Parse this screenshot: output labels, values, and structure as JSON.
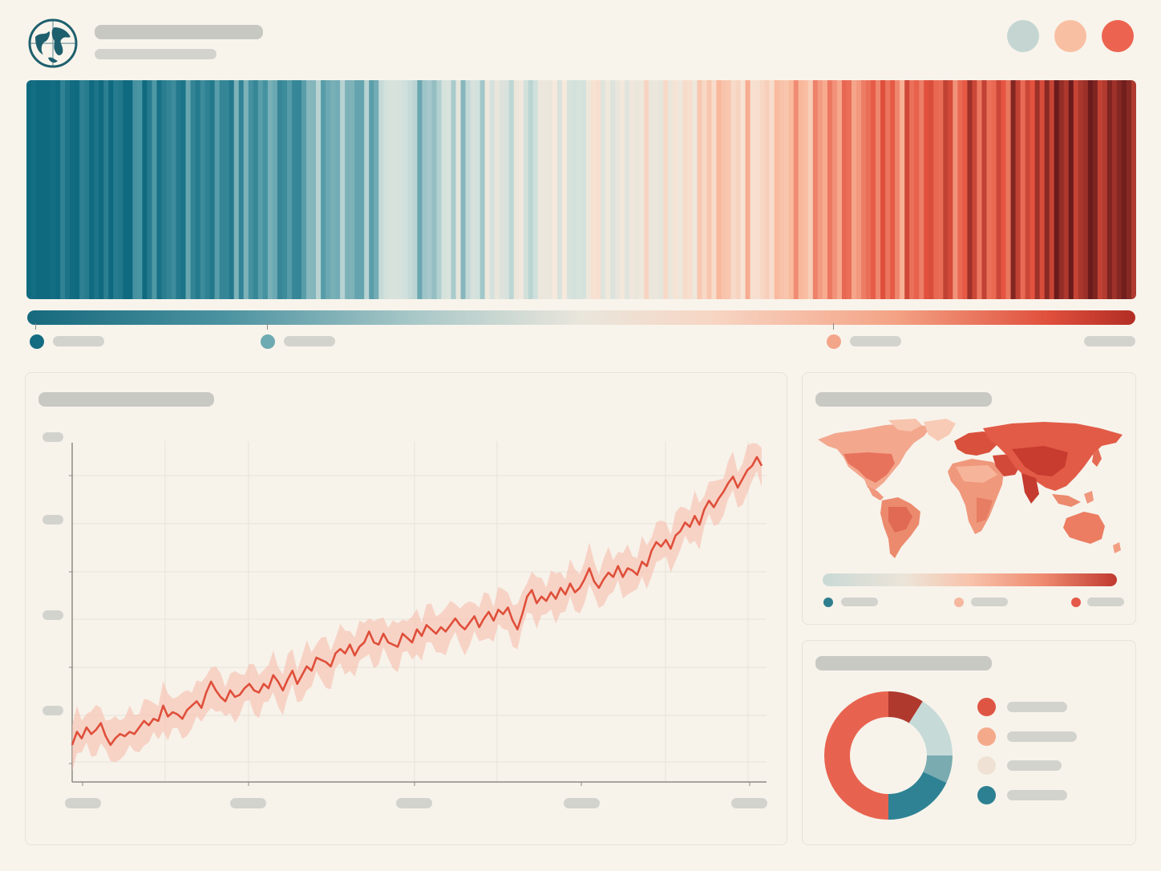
{
  "header": {
    "logo_icon": "globe-icon",
    "title": "",
    "subtitle": "",
    "actions": [
      {
        "icon": "theme-cool-button",
        "color": "#c5d6d2"
      },
      {
        "icon": "theme-warm-button",
        "color": "#f9bfa2"
      },
      {
        "icon": "theme-hot-button",
        "color": "#ec6450"
      }
    ]
  },
  "stripes": {
    "palette": [
      "#0f6a80",
      "#4a95a3",
      "#cfe0dc",
      "#f6e9dc",
      "#f9b89c",
      "#e4523e",
      "#6b1b1b"
    ],
    "colorbar_ticks": [
      {
        "label": "",
        "color": "#136c81"
      },
      {
        "label": "",
        "color": "#6eaab2"
      },
      {
        "label": "",
        "color": "#f3a58a"
      },
      {
        "label": "",
        "color": ""
      }
    ]
  },
  "trend_panel": {
    "title": "",
    "line_color": "#df4f3a",
    "band_color": "#f7b8a8",
    "y_tick_labels": [
      "",
      "",
      "",
      ""
    ],
    "x_tick_labels": [
      "",
      "",
      "",
      "",
      ""
    ]
  },
  "chart_data": {
    "type": "line",
    "title": "",
    "xlabel": "",
    "ylabel": "",
    "x": [
      0,
      1,
      2,
      3,
      4,
      5,
      6,
      7,
      8,
      9,
      10,
      11,
      12,
      13,
      14,
      15,
      16,
      17,
      18,
      19,
      20,
      21,
      22,
      23,
      24,
      25,
      26,
      27,
      28,
      29,
      30,
      31,
      32,
      33,
      34,
      35,
      36,
      37,
      38,
      39,
      40,
      41,
      42,
      43,
      44,
      45,
      46,
      47,
      48,
      49,
      50,
      51,
      52,
      53,
      54,
      55,
      56,
      57,
      58,
      59,
      60,
      61,
      62,
      63,
      64,
      65,
      66,
      67,
      68,
      69,
      70,
      71,
      72,
      73,
      74,
      75,
      76,
      77,
      78,
      79,
      80,
      81,
      82,
      83,
      84,
      85,
      86,
      87,
      88,
      89,
      90,
      91,
      92,
      93,
      94,
      95,
      96,
      97,
      98,
      99,
      100,
      101,
      102,
      103,
      104,
      105,
      106,
      107,
      108,
      109,
      110,
      111,
      112,
      113,
      114,
      115,
      116,
      117,
      118,
      119,
      120,
      121,
      122,
      123,
      124,
      125,
      126,
      127,
      128,
      129,
      130,
      131,
      132,
      133,
      134,
      135,
      136,
      137,
      138,
      139,
      140,
      141,
      142,
      143,
      144
    ],
    "series": [
      {
        "values": [
          0.02,
          0.08,
          0.05,
          0.1,
          0.07,
          0.09,
          0.12,
          0.06,
          0.02,
          0.05,
          0.07,
          0.06,
          0.08,
          0.07,
          0.1,
          0.13,
          0.11,
          0.14,
          0.13,
          0.2,
          0.15,
          0.17,
          0.16,
          0.14,
          0.18,
          0.2,
          0.22,
          0.19,
          0.26,
          0.31,
          0.27,
          0.24,
          0.22,
          0.27,
          0.24,
          0.25,
          0.28,
          0.3,
          0.27,
          0.26,
          0.3,
          0.28,
          0.34,
          0.31,
          0.27,
          0.32,
          0.36,
          0.3,
          0.34,
          0.38,
          0.36,
          0.42,
          0.41,
          0.4,
          0.38,
          0.44,
          0.46,
          0.44,
          0.48,
          0.43,
          0.47,
          0.49,
          0.54,
          0.49,
          0.48,
          0.53,
          0.49,
          0.48,
          0.47,
          0.53,
          0.51,
          0.49,
          0.55,
          0.52,
          0.57,
          0.55,
          0.53,
          0.56,
          0.54,
          0.57,
          0.6,
          0.57,
          0.55,
          0.58,
          0.61,
          0.56,
          0.6,
          0.63,
          0.59,
          0.64,
          0.62,
          0.65,
          0.59,
          0.55,
          0.62,
          0.7,
          0.73,
          0.67,
          0.7,
          0.68,
          0.72,
          0.69,
          0.74,
          0.71,
          0.76,
          0.72,
          0.74,
          0.78,
          0.83,
          0.77,
          0.74,
          0.78,
          0.81,
          0.79,
          0.84,
          0.79,
          0.83,
          0.82,
          0.8,
          0.86,
          0.84,
          0.91,
          0.95,
          0.93,
          0.96,
          0.92,
          0.98,
          1.0,
          1.04,
          1.02,
          1.07,
          1.03,
          1.1,
          1.14,
          1.11,
          1.15,
          1.18,
          1.22,
          1.25,
          1.2,
          1.24,
          1.28,
          1.3,
          1.34,
          1.3
        ]
      }
    ],
    "ylim": [
      -0.15,
      1.45
    ],
    "grid": true
  },
  "map_panel": {
    "title": "",
    "scale_ticks": [
      {
        "label": "",
        "color": "#2f7e8e"
      },
      {
        "label": "",
        "color": "#f5b79e"
      },
      {
        "label": "",
        "color": "#e5594a"
      }
    ]
  },
  "donut_panel": {
    "title": "",
    "slices": [
      {
        "value": 0.09,
        "color": "#b0392e"
      },
      {
        "value": 0.16,
        "color": "#c6dad8"
      },
      {
        "value": 0.07,
        "color": "#7aabb1"
      },
      {
        "value": 0.18,
        "color": "#2e8294"
      },
      {
        "value": 0.5,
        "color": "#e8634f"
      }
    ],
    "legend": [
      {
        "label": "",
        "color": "#df5543"
      },
      {
        "label": "",
        "color": "#f5a98b"
      },
      {
        "label": "",
        "color": "#efe2d5"
      },
      {
        "label": "",
        "color": "#2d7f92"
      }
    ]
  }
}
